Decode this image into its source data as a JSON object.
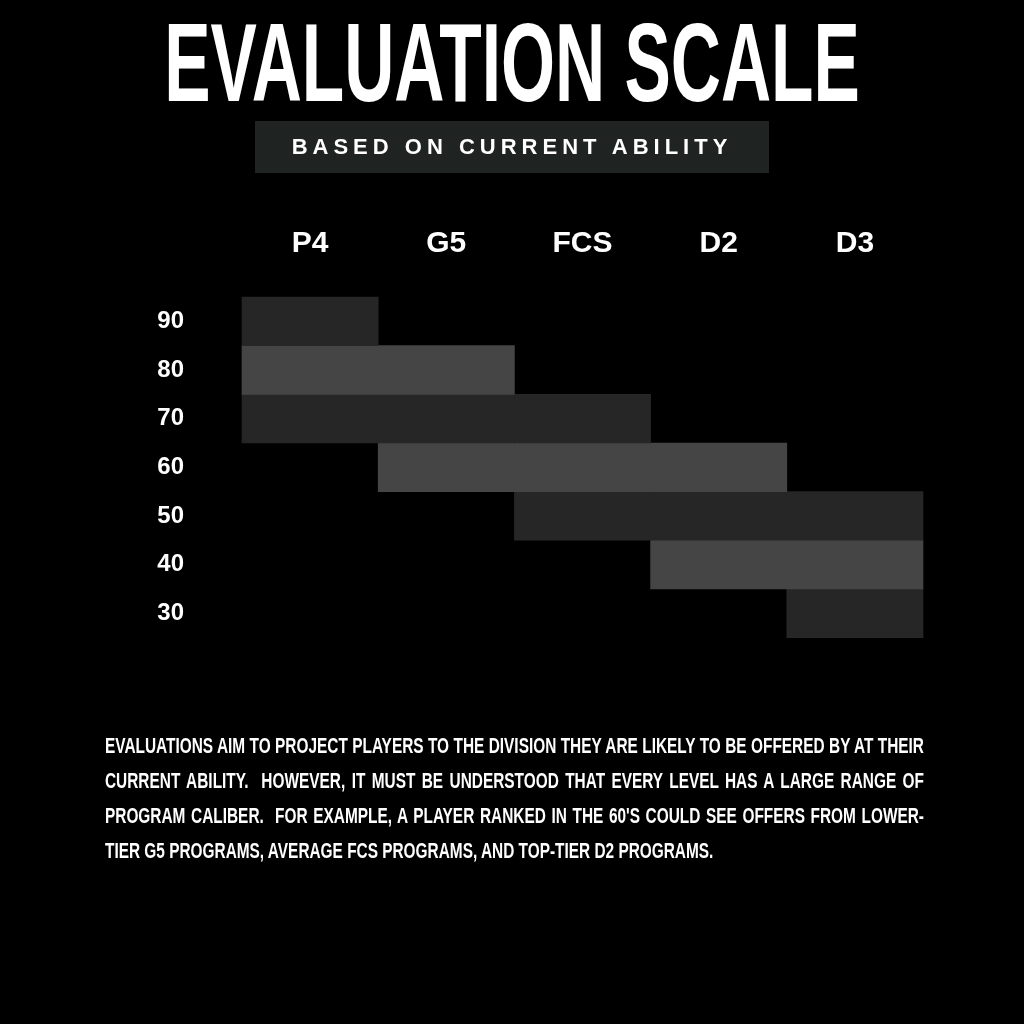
{
  "chart_data": {
    "type": "bar",
    "title": "EVALUATION SCALE",
    "subtitle": "BASED ON CURRENT ABILITY",
    "categories": [
      "P4",
      "G5",
      "FCS",
      "D2",
      "D3"
    ],
    "series": [
      {
        "color": "#262626",
        "base": [
          85,
          null,
          null,
          null,
          null
        ],
        "values": [
          10,
          null,
          null,
          null,
          null
        ]
      },
      {
        "color": "#454545",
        "base": [
          75,
          75,
          null,
          null,
          null
        ],
        "values": [
          10,
          10,
          null,
          null,
          null
        ]
      },
      {
        "color": "#262626",
        "base": [
          65,
          65,
          65,
          null,
          null
        ],
        "values": [
          10,
          10,
          10,
          null,
          null
        ]
      },
      {
        "color": "#454545",
        "base": [
          null,
          55,
          55,
          55,
          null
        ],
        "values": [
          null,
          10,
          10,
          10,
          null
        ]
      },
      {
        "color": "#262626",
        "base": [
          null,
          null,
          45,
          45,
          45
        ],
        "values": [
          null,
          null,
          10,
          10,
          10
        ]
      },
      {
        "color": "#454545",
        "base": [
          null,
          null,
          null,
          35,
          35
        ],
        "values": [
          null,
          null,
          null,
          10,
          10
        ]
      },
      {
        "color": "#262626",
        "base": [
          null,
          null,
          null,
          null,
          25
        ],
        "values": [
          null,
          null,
          null,
          null,
          10
        ]
      }
    ],
    "ylim": [
      25,
      95
    ],
    "yticks": [
      30,
      40,
      50,
      60,
      70,
      80,
      90
    ],
    "grid": false,
    "legend": false,
    "annotations": [
      "EVALUATIONS AIM TO PROJECT PLAYERS TO THE DIVISION THEY ARE LIKELY TO BE OFFERED BY AT THEIR CURRENT ABILITY.  HOWEVER, IT MUST BE UNDERSTOOD THAT EVERY LEVEL HAS A LARGE RANGE OF PROGRAM CALIBER.  FOR EXAMPLE, A PLAYER RANKED IN THE 60'S COULD SEE OFFERS FROM LOWER-TIER G5 PROGRAMS, AVERAGE FCS PROGRAMS, AND TOP-TIER D2 PROGRAMS."
    ]
  }
}
